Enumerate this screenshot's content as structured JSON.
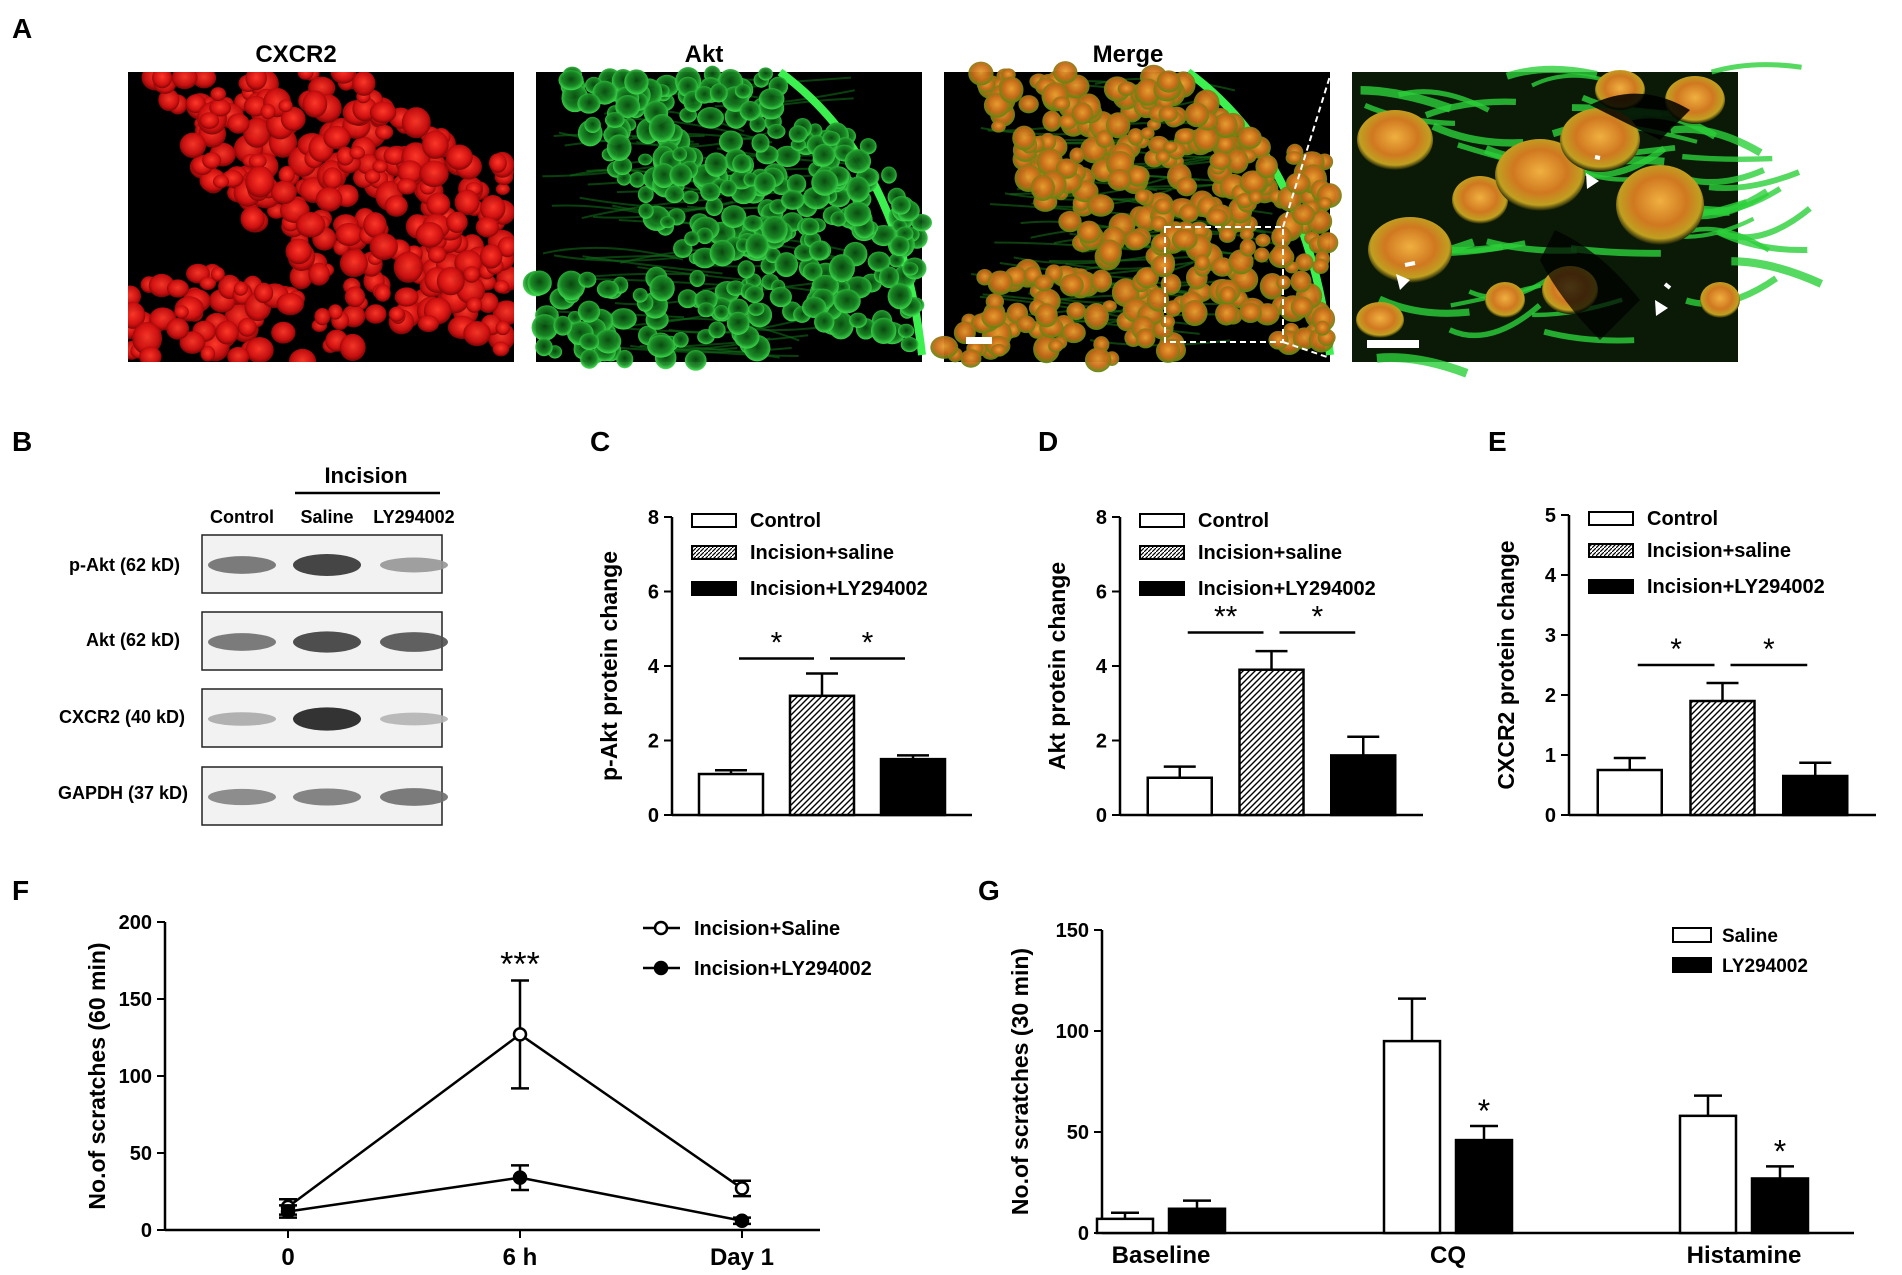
{
  "panel_labels": {
    "a": "A",
    "b": "B",
    "c": "C",
    "d": "D",
    "e": "E",
    "f": "F",
    "g": "G"
  },
  "panel_a": {
    "titles": [
      "CXCR2",
      "Akt",
      "Merge"
    ],
    "title_colors": [
      "#e0202a",
      "#1fb53a",
      "#000000"
    ],
    "stain_colors": {
      "red": "#e41a1a",
      "green": "#21c43a",
      "merge": "#c8a020"
    }
  },
  "panel_b": {
    "group_header": "Incision",
    "lanes": [
      "Control",
      "Saline",
      "LY294002"
    ],
    "rows": [
      "p-Akt (62 kD)",
      "Akt (62 kD)",
      "CXCR2 (40 kD)",
      "GAPDH (37 kD)"
    ],
    "band_intensity": [
      [
        0.55,
        0.85,
        0.35
      ],
      [
        0.55,
        0.8,
        0.7
      ],
      [
        0.25,
        0.95,
        0.2
      ],
      [
        0.45,
        0.5,
        0.55
      ]
    ]
  },
  "chart_data": [
    {
      "type": "bar",
      "panel": "C",
      "ylabel": "p-Akt protein change",
      "ylim": [
        0,
        8
      ],
      "yticks": [
        "0",
        "2",
        "4",
        "6",
        "8"
      ],
      "categories": [
        "Control",
        "Incision+saline",
        "Incision+LY294002"
      ],
      "values": [
        1.1,
        3.2,
        1.5
      ],
      "errors": [
        0.1,
        0.6,
        0.1
      ],
      "fills": [
        "white",
        "hatch",
        "black"
      ],
      "legend": [
        "Control",
        "Incision+saline",
        "Incision+LY294002"
      ],
      "sig": [
        {
          "from": 0,
          "to": 1,
          "label": "*",
          "y": 4.2
        },
        {
          "from": 1,
          "to": 2,
          "label": "*",
          "y": 4.2
        }
      ]
    },
    {
      "type": "bar",
      "panel": "D",
      "ylabel": "Akt protein  change",
      "ylim": [
        0,
        8
      ],
      "yticks": [
        "0",
        "2",
        "4",
        "6",
        "8"
      ],
      "categories": [
        "Control",
        "Incision+saline",
        "Incision+LY294002"
      ],
      "values": [
        1.0,
        3.9,
        1.6
      ],
      "errors": [
        0.3,
        0.5,
        0.5
      ],
      "fills": [
        "white",
        "hatch",
        "black"
      ],
      "legend": [
        "Control",
        "Incision+saline",
        "Incision+LY294002"
      ],
      "sig": [
        {
          "from": 0,
          "to": 1,
          "label": "**",
          "y": 4.9
        },
        {
          "from": 1,
          "to": 2,
          "label": "*",
          "y": 4.9
        }
      ]
    },
    {
      "type": "bar",
      "panel": "E",
      "ylabel": "CXCR2 protein change",
      "ylim": [
        0,
        5
      ],
      "yticks": [
        "0",
        "1",
        "2",
        "3",
        "4",
        "5"
      ],
      "categories": [
        "Control",
        "Incision+saline",
        "Incision+LY294002"
      ],
      "values": [
        0.75,
        1.9,
        0.65
      ],
      "errors": [
        0.2,
        0.3,
        0.22
      ],
      "fills": [
        "white",
        "hatch",
        "black"
      ],
      "legend": [
        "Control",
        "Incision+saline",
        "Incision+LY294002"
      ],
      "sig": [
        {
          "from": 0,
          "to": 1,
          "label": "*",
          "y": 2.5
        },
        {
          "from": 1,
          "to": 2,
          "label": "*",
          "y": 2.5
        }
      ]
    },
    {
      "type": "line",
      "panel": "F",
      "ylabel": "No.of scratches (60 min)",
      "ylim": [
        0,
        200
      ],
      "yticks": [
        "0",
        "50",
        "100",
        "150",
        "200"
      ],
      "x": [
        "0",
        "6 h",
        "Day 1"
      ],
      "series": [
        {
          "name": "Incision+Saline",
          "values": [
            15,
            127,
            27
          ],
          "errors": [
            5,
            35,
            5
          ],
          "marker": "open"
        },
        {
          "name": "Incision+LY294002",
          "values": [
            12,
            34,
            6
          ],
          "errors": [
            4,
            8,
            2
          ],
          "marker": "filled"
        }
      ],
      "annotations": [
        {
          "x": 1,
          "y": 173,
          "label": "***"
        }
      ]
    },
    {
      "type": "bar",
      "panel": "G",
      "ylabel": "No.of scratches (30 min)",
      "ylim": [
        0,
        150
      ],
      "yticks": [
        "0",
        "50",
        "100",
        "150"
      ],
      "categories": [
        "Baseline",
        "CQ",
        "Histamine"
      ],
      "series": [
        {
          "name": "Saline",
          "values": [
            7,
            95,
            58
          ],
          "errors": [
            3,
            21,
            10
          ],
          "fill": "white"
        },
        {
          "name": "LY294002",
          "values": [
            12,
            46,
            27
          ],
          "errors": [
            4,
            7,
            6
          ],
          "fill": "black"
        }
      ],
      "annotations": [
        {
          "cat": 1,
          "series": 1,
          "label": "*"
        },
        {
          "cat": 2,
          "series": 1,
          "label": "*"
        }
      ]
    }
  ]
}
